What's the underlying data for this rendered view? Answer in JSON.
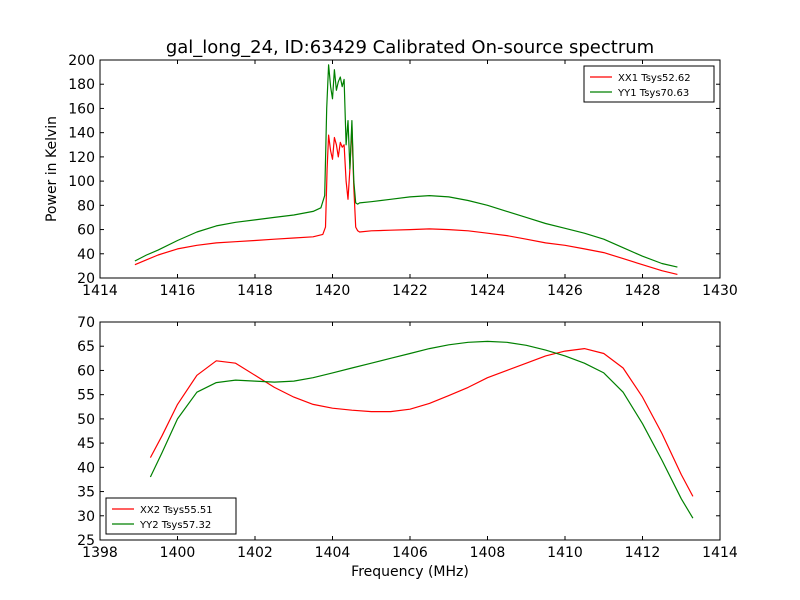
{
  "figure": {
    "title": "gal_long_24, ID:63429 Calibrated On-source spectrum"
  },
  "chart_data": [
    {
      "type": "line",
      "title": "gal_long_24, ID:63429 Calibrated On-source spectrum",
      "xlabel": "",
      "ylabel": "Power in Kelvin",
      "xlim": [
        1414,
        1430
      ],
      "ylim": [
        20,
        200
      ],
      "xticks": [
        1414,
        1416,
        1418,
        1420,
        1422,
        1424,
        1426,
        1428,
        1430
      ],
      "yticks": [
        20,
        40,
        60,
        80,
        100,
        120,
        140,
        160,
        180,
        200
      ],
      "grid": false,
      "legend": "top-right",
      "series": [
        {
          "name": "XX1 Tsys52.62",
          "color": "#ff0000",
          "x": [
            1414.9,
            1415.2,
            1415.5,
            1416.0,
            1416.5,
            1417.0,
            1417.5,
            1418.0,
            1418.5,
            1419.0,
            1419.5,
            1419.75,
            1419.82,
            1419.86,
            1419.9,
            1419.95,
            1420.0,
            1420.05,
            1420.1,
            1420.15,
            1420.2,
            1420.25,
            1420.3,
            1420.35,
            1420.4,
            1420.45,
            1420.5,
            1420.55,
            1420.6,
            1420.65,
            1420.7,
            1421.0,
            1421.5,
            1422.0,
            1422.5,
            1423.0,
            1423.5,
            1424.0,
            1424.5,
            1425.0,
            1425.5,
            1426.0,
            1426.5,
            1427.0,
            1427.5,
            1428.0,
            1428.5,
            1428.9
          ],
          "y": [
            31,
            35,
            39,
            44,
            47,
            49,
            50,
            51,
            52,
            53,
            54,
            56,
            62,
            110,
            138,
            125,
            118,
            136,
            130,
            120,
            132,
            128,
            130,
            100,
            85,
            110,
            145,
            95,
            62,
            59,
            58,
            59,
            59.5,
            60,
            60.5,
            60,
            59,
            57,
            55,
            52,
            49,
            47,
            44,
            41,
            36,
            31,
            26,
            23
          ]
        },
        {
          "name": "YY1 Tsys70.63",
          "color": "#008000",
          "x": [
            1414.9,
            1415.2,
            1415.5,
            1416.0,
            1416.5,
            1417.0,
            1417.5,
            1418.0,
            1418.5,
            1419.0,
            1419.5,
            1419.7,
            1419.8,
            1419.85,
            1419.9,
            1419.95,
            1420.0,
            1420.05,
            1420.1,
            1420.15,
            1420.2,
            1420.25,
            1420.3,
            1420.35,
            1420.4,
            1420.45,
            1420.5,
            1420.55,
            1420.6,
            1420.65,
            1420.7,
            1421.0,
            1421.5,
            1422.0,
            1422.5,
            1423.0,
            1423.5,
            1424.0,
            1424.5,
            1425.0,
            1425.5,
            1426.0,
            1426.5,
            1427.0,
            1427.5,
            1428.0,
            1428.5,
            1428.9
          ],
          "y": [
            34,
            39,
            43,
            51,
            58,
            63,
            66,
            68,
            70,
            72,
            75,
            78,
            88,
            160,
            196,
            178,
            168,
            192,
            175,
            182,
            186,
            178,
            184,
            130,
            150,
            110,
            150,
            100,
            82,
            81,
            82,
            83,
            85,
            87,
            88,
            87,
            84,
            80,
            75,
            70,
            65,
            61,
            57,
            52,
            45,
            38,
            32,
            29
          ]
        }
      ]
    },
    {
      "type": "line",
      "title": "",
      "xlabel": "Frequency (MHz)",
      "ylabel": "",
      "xlim": [
        1398,
        1414
      ],
      "ylim": [
        25,
        70
      ],
      "xticks": [
        1398,
        1400,
        1402,
        1404,
        1406,
        1408,
        1410,
        1412,
        1414
      ],
      "yticks": [
        25,
        30,
        35,
        40,
        45,
        50,
        55,
        60,
        65,
        70
      ],
      "grid": false,
      "legend": "bottom-left",
      "series": [
        {
          "name": "XX2 Tsys55.51",
          "color": "#ff0000",
          "x": [
            1399.3,
            1399.6,
            1400.0,
            1400.5,
            1401.0,
            1401.5,
            1402.0,
            1402.5,
            1403.0,
            1403.5,
            1404.0,
            1404.5,
            1405.0,
            1405.5,
            1406.0,
            1406.5,
            1407.0,
            1407.5,
            1408.0,
            1408.5,
            1409.0,
            1409.5,
            1410.0,
            1410.5,
            1411.0,
            1411.5,
            1412.0,
            1412.5,
            1413.0,
            1413.3
          ],
          "y": [
            42,
            46.5,
            53,
            59,
            62,
            61.5,
            59,
            56.5,
            54.5,
            53,
            52.2,
            51.8,
            51.5,
            51.5,
            52,
            53.2,
            54.8,
            56.5,
            58.5,
            60,
            61.5,
            63,
            64,
            64.5,
            63.5,
            60.5,
            54.5,
            47,
            38.5,
            34
          ]
        },
        {
          "name": "YY2 Tsys57.32",
          "color": "#008000",
          "x": [
            1399.3,
            1399.6,
            1400.0,
            1400.5,
            1401.0,
            1401.5,
            1402.0,
            1402.5,
            1403.0,
            1403.5,
            1404.0,
            1404.5,
            1405.0,
            1405.5,
            1406.0,
            1406.5,
            1407.0,
            1407.5,
            1408.0,
            1408.5,
            1409.0,
            1409.5,
            1410.0,
            1410.5,
            1411.0,
            1411.5,
            1412.0,
            1412.5,
            1413.0,
            1413.3
          ],
          "y": [
            38,
            43,
            50,
            55.5,
            57.5,
            58,
            57.8,
            57.6,
            57.8,
            58.5,
            59.5,
            60.5,
            61.5,
            62.5,
            63.5,
            64.5,
            65.3,
            65.8,
            66,
            65.8,
            65.2,
            64.2,
            63,
            61.5,
            59.5,
            55.5,
            49,
            41.5,
            33.5,
            29.5
          ]
        }
      ]
    }
  ]
}
